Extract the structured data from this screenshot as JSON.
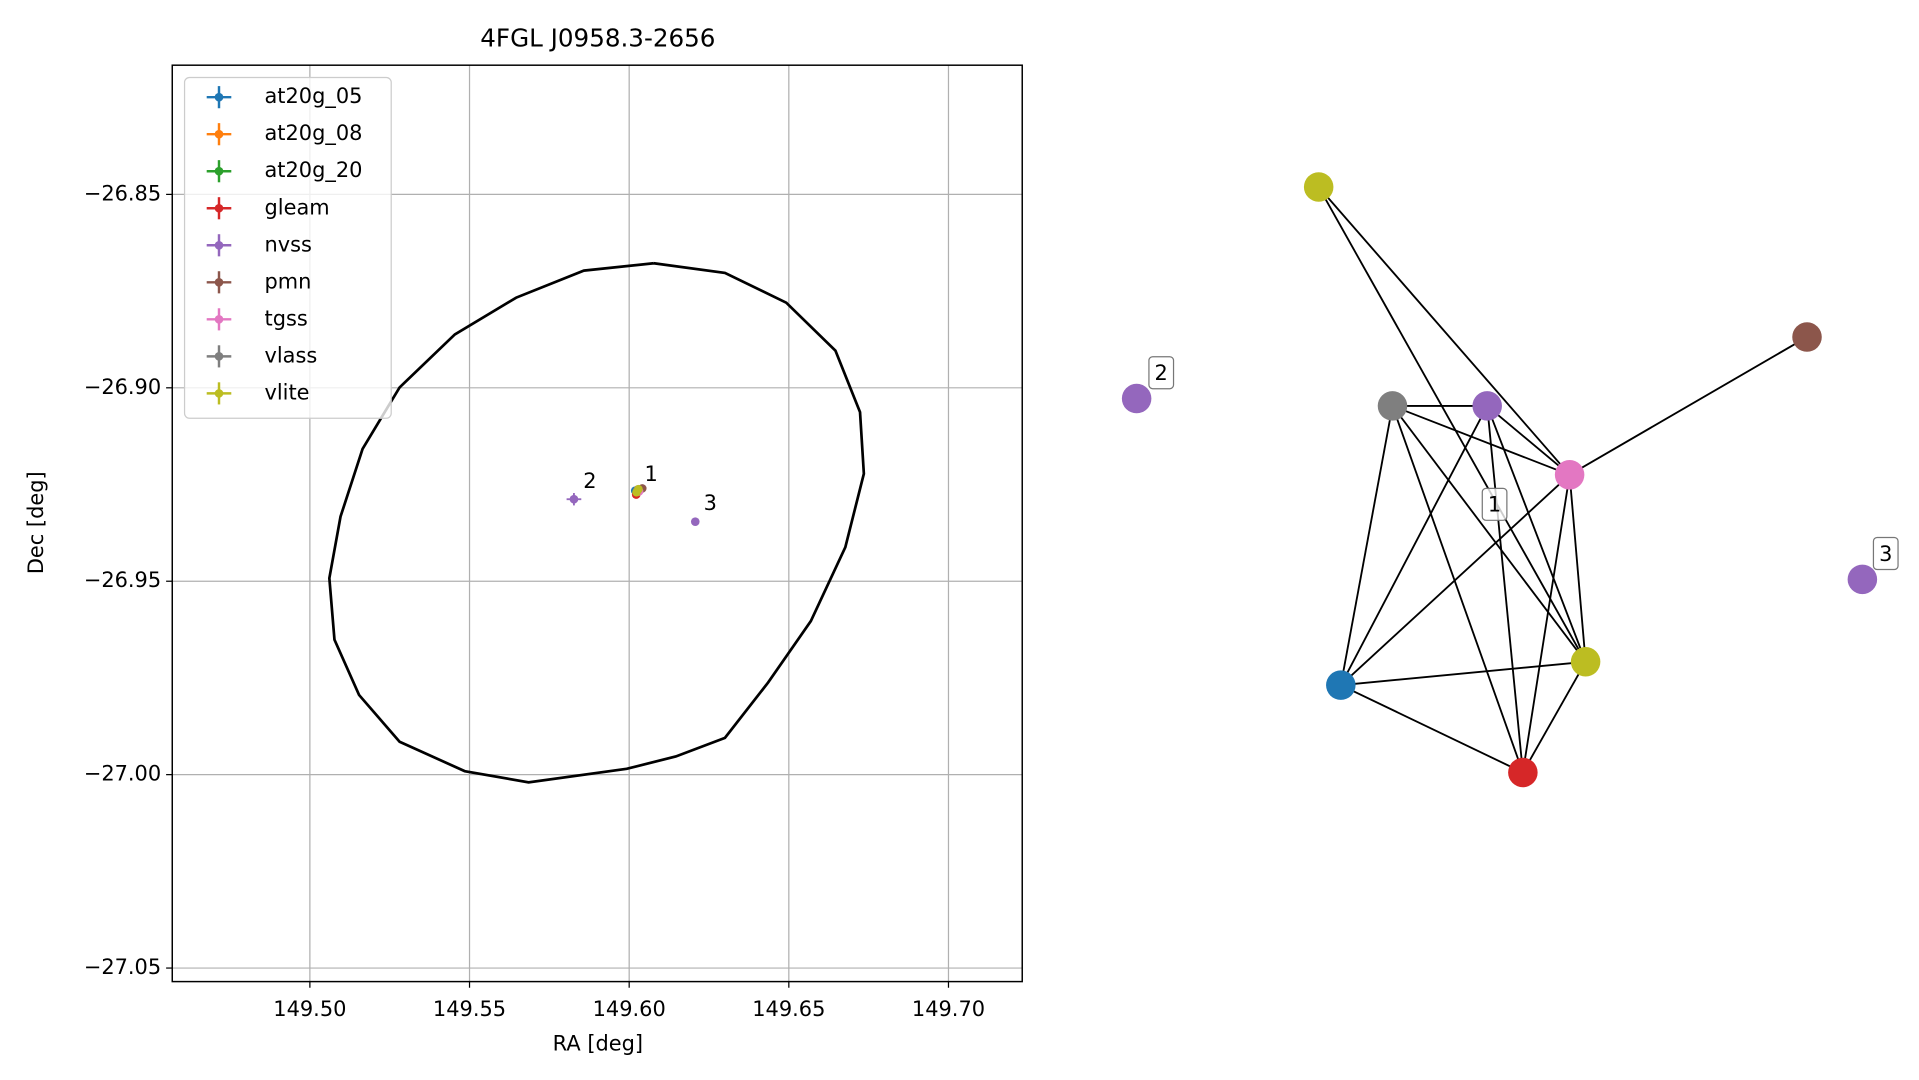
{
  "chart_data": {
    "type": "scatter",
    "title": "4FGL J0958.3-2656",
    "xlabel": "RA [deg]",
    "ylabel": "Dec [deg]",
    "xlim": [
      149.4569,
      149.7231
    ],
    "ylim": [
      -27.0535,
      -26.8166
    ],
    "xticks": [
      {
        "value": 149.5,
        "label": "149.50"
      },
      {
        "value": 149.55,
        "label": "149.55"
      },
      {
        "value": 149.6,
        "label": "149.60"
      },
      {
        "value": 149.65,
        "label": "149.65"
      },
      {
        "value": 149.7,
        "label": "149.70"
      }
    ],
    "yticks": [
      {
        "value": -26.85,
        "label": "−26.85"
      },
      {
        "value": -26.9,
        "label": "−26.90"
      },
      {
        "value": -26.95,
        "label": "−26.95"
      },
      {
        "value": -27.0,
        "label": "−27.00"
      },
      {
        "value": -27.05,
        "label": "−27.05"
      }
    ],
    "grid": true,
    "legend": "upper left",
    "series": [
      {
        "name": "at20g_05",
        "color": "#1f77b4",
        "x": [
          149.6019
        ],
        "y": [
          -26.9266
        ],
        "xerr": [
          0.0004
        ],
        "yerr": [
          0.0004
        ]
      },
      {
        "name": "at20g_08",
        "color": "#ff7f0e",
        "x": [],
        "y": [],
        "xerr": [],
        "yerr": []
      },
      {
        "name": "at20g_20",
        "color": "#2ca02c",
        "x": [],
        "y": [],
        "xerr": [],
        "yerr": []
      },
      {
        "name": "gleam",
        "color": "#d62728",
        "x": [
          149.6022
        ],
        "y": [
          -26.9276
        ],
        "xerr": [
          0.0005
        ],
        "yerr": [
          0.0005
        ]
      },
      {
        "name": "nvss",
        "color": "#9467bd",
        "x": [
          149.6027,
          149.5827,
          149.6207
        ],
        "y": [
          -26.9263,
          -26.9288,
          -26.9346
        ],
        "xerr": [
          0.0004,
          0.0023,
          0.0008
        ],
        "yerr": [
          0.0004,
          0.0016,
          0.0006
        ]
      },
      {
        "name": "pmn",
        "color": "#8c564b",
        "x": [
          149.6041
        ],
        "y": [
          -26.926
        ],
        "xerr": [
          0.0005
        ],
        "yerr": [
          0.0004
        ]
      },
      {
        "name": "tgss",
        "color": "#e377c2",
        "x": [
          149.6031
        ],
        "y": [
          -26.9268
        ],
        "xerr": [
          0.0004
        ],
        "yerr": [
          0.0004
        ]
      },
      {
        "name": "vlass",
        "color": "#7f7f7f",
        "x": [
          149.6025
        ],
        "y": [
          -26.9265
        ],
        "xerr": [
          0.0002
        ],
        "yerr": [
          0.0002
        ]
      },
      {
        "name": "vlite",
        "color": "#bcbd22",
        "x": [
          149.6023,
          149.6029
        ],
        "y": [
          -26.927,
          -26.9262
        ],
        "xerr": [
          0.0006,
          0.0006
        ],
        "yerr": [
          0.0006,
          0.0006
        ]
      }
    ],
    "ellipse": {
      "color": "#000000",
      "x": [
        149.6077,
        149.63,
        149.6492,
        149.6646,
        149.6723,
        149.6735,
        149.6677,
        149.6569,
        149.6435,
        149.63,
        149.6146,
        149.5992,
        149.5685,
        149.5485,
        149.5281,
        149.5154,
        149.5077,
        149.5061,
        149.5096,
        149.5165,
        149.5281,
        149.5454,
        149.5646,
        149.5858,
        149.6077
      ],
      "y": [
        -26.8678,
        -26.8703,
        -26.878,
        -26.8904,
        -26.9063,
        -26.9222,
        -26.9412,
        -26.9603,
        -26.9762,
        -26.9905,
        -26.9953,
        -26.9985,
        -27.002,
        -26.9991,
        -26.9915,
        -26.9794,
        -26.9651,
        -26.9492,
        -26.9333,
        -26.9158,
        -26.8999,
        -26.8862,
        -26.8767,
        -26.8697,
        -26.8678
      ]
    },
    "annotations": [
      {
        "text": "1",
        "x": 149.6069,
        "y": -26.9225
      },
      {
        "text": "2",
        "x": 149.5877,
        "y": -26.9244
      },
      {
        "text": "3",
        "x": 149.6254,
        "y": -26.9301
      }
    ]
  },
  "graph": {
    "labels": [
      "1",
      "2",
      "3"
    ]
  }
}
